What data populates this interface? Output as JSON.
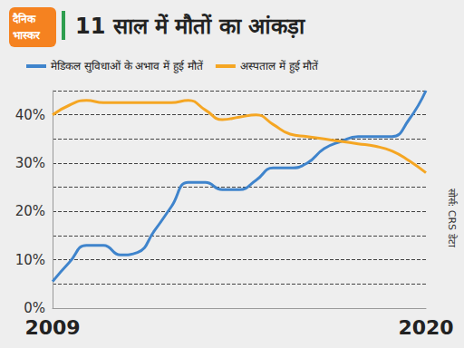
{
  "chart_data": {
    "type": "line",
    "title": "11 साल में मौतों का आंकड़ा",
    "logo": "दैनिक भास्कर",
    "source": "सोर्स: CRS डेटा",
    "x": [
      2009,
      2009.5,
      2010,
      2010.5,
      2011,
      2011.5,
      2012,
      2012.5,
      2013,
      2013.5,
      2014,
      2014.5,
      2015,
      2015.5,
      2016,
      2016.5,
      2017,
      2017.5,
      2018,
      2018.5,
      2019,
      2019.5,
      2020
    ],
    "series": [
      {
        "name": "मेडिकल सुविधाओं के अभाव में हुई मौतें",
        "color": "#3f84cc",
        "values": [
          5.5,
          9.5,
          13,
          13,
          11,
          11.5,
          16,
          21,
          26,
          26,
          24.5,
          24.5,
          26.5,
          29,
          29,
          30,
          33,
          34.5,
          35.5,
          35.5,
          35.5,
          39,
          45
        ]
      },
      {
        "name": "अस्पताल में हुई मौतें",
        "color": "#f5a623",
        "values": [
          40,
          42,
          43,
          42.5,
          42.5,
          42.5,
          42.5,
          42.5,
          43,
          41,
          39,
          39.5,
          40,
          38,
          36,
          35.5,
          35,
          34.5,
          34,
          33.5,
          32.5,
          30.5,
          28
        ]
      }
    ],
    "xlim": [
      2009,
      2020
    ],
    "xticks": [
      2009,
      2020
    ],
    "ylim": [
      0,
      45
    ],
    "yticks": [
      {
        "value": 0,
        "label": "0%"
      },
      {
        "value": 10,
        "label": "10%"
      },
      {
        "value": 20,
        "label": "20%"
      },
      {
        "value": 30,
        "label": "30%"
      },
      {
        "value": 40,
        "label": "40%"
      }
    ],
    "grid": true,
    "legend": "top-left"
  }
}
